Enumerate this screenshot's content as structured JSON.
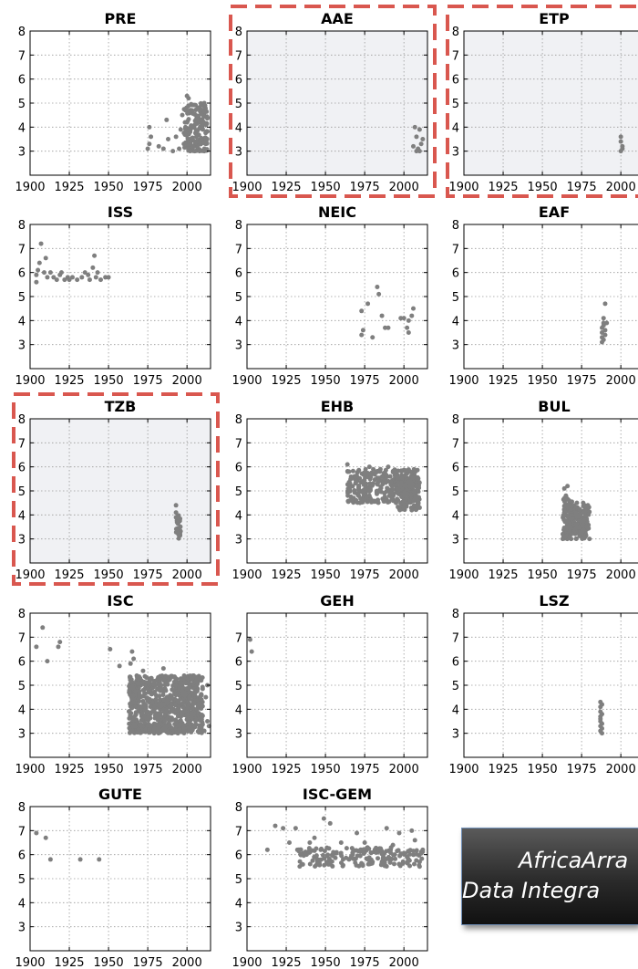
{
  "figure": {
    "point_color": "#7f7f7f",
    "highlight_color": "#d9574f",
    "highlight_fill": "#f0f1f4"
  },
  "banner": {
    "line1": "AfricaArra",
    "line2": "Data Integra"
  },
  "chart_data": [
    {
      "type": "scatter",
      "title": "PRE",
      "highlighted": false,
      "xlim": [
        1900,
        2015
      ],
      "ylim": [
        2,
        8
      ],
      "xticks": [
        "1900",
        "1925",
        "1950",
        "1975",
        "2000"
      ],
      "yticks": [
        "3",
        "4",
        "5",
        "6",
        "7",
        "8"
      ],
      "grid": true,
      "points": [
        [
          1975,
          3.1
        ],
        [
          1976,
          3.3
        ],
        [
          1976,
          4.0
        ],
        [
          1977,
          3.6
        ],
        [
          1982,
          3.2
        ],
        [
          1985,
          3.1
        ],
        [
          1987,
          4.3
        ],
        [
          1988,
          3.5
        ],
        [
          1991,
          3.0
        ],
        [
          1993,
          3.6
        ],
        [
          1995,
          3.1
        ],
        [
          1996,
          3.9
        ],
        [
          1997,
          4.5
        ],
        [
          1998,
          3.3
        ],
        [
          1999,
          4.0
        ],
        [
          2000,
          5.3
        ],
        [
          2001,
          5.2
        ],
        [
          2000,
          4.2
        ],
        [
          2002,
          3.8
        ],
        [
          2003,
          4.7
        ],
        [
          2004,
          3.2
        ],
        [
          2005,
          4.1
        ],
        [
          2006,
          3.6
        ],
        [
          2007,
          4.8
        ],
        [
          2008,
          3.4
        ],
        [
          2009,
          4.2
        ],
        [
          2010,
          3.9
        ],
        [
          2011,
          5.0
        ],
        [
          2012,
          3.5
        ],
        [
          2013,
          4.4
        ],
        [
          2002,
          3.0
        ],
        [
          2005,
          3.0
        ],
        [
          2008,
          3.0
        ],
        [
          2011,
          3.0
        ],
        [
          2012,
          4.1
        ]
      ],
      "clusters": [
        {
          "x": [
            1998,
            2013
          ],
          "y": [
            3.0,
            5.0
          ],
          "n": 150
        }
      ]
    },
    {
      "type": "scatter",
      "title": "AAE",
      "highlighted": true,
      "xlim": [
        1900,
        2015
      ],
      "ylim": [
        2,
        8
      ],
      "xticks": [
        "1900",
        "1925",
        "1950",
        "1975",
        "2000"
      ],
      "yticks": [
        "3",
        "4",
        "5",
        "6",
        "7",
        "8"
      ],
      "grid": true,
      "points": [
        [
          2006,
          3.2
        ],
        [
          2007,
          4.0
        ],
        [
          2008,
          3.6
        ],
        [
          2009,
          3.1
        ],
        [
          2010,
          3.9
        ],
        [
          2011,
          3.3
        ],
        [
          2012,
          3.5
        ],
        [
          2008,
          3.0
        ],
        [
          2010,
          3.0
        ]
      ]
    },
    {
      "type": "scatter",
      "title": "ETP",
      "highlighted": true,
      "xlim": [
        1900,
        2015
      ],
      "ylim": [
        2,
        8
      ],
      "xticks": [
        "1900",
        "1925",
        "1950",
        "1975",
        "2000"
      ],
      "yticks": [
        "3",
        "4",
        "5",
        "6",
        "7",
        "8"
      ],
      "grid": true,
      "points": [
        [
          2000,
          3.6
        ],
        [
          2000,
          3.4
        ],
        [
          2001,
          3.2
        ],
        [
          2000,
          3.0
        ],
        [
          2001,
          3.1
        ]
      ]
    },
    {
      "type": "scatter",
      "title": "ISS",
      "highlighted": false,
      "xlim": [
        1900,
        2015
      ],
      "ylim": [
        2,
        8
      ],
      "xticks": [
        "1900",
        "1925",
        "1950",
        "1975",
        "2000"
      ],
      "yticks": [
        "3",
        "4",
        "5",
        "6",
        "7",
        "8"
      ],
      "grid": true,
      "points": [
        [
          1904,
          5.6
        ],
        [
          1904,
          5.9
        ],
        [
          1905,
          6.1
        ],
        [
          1906,
          6.4
        ],
        [
          1907,
          7.2
        ],
        [
          1909,
          6.0
        ],
        [
          1910,
          6.6
        ],
        [
          1911,
          5.8
        ],
        [
          1913,
          6.0
        ],
        [
          1915,
          5.8
        ],
        [
          1917,
          5.7
        ],
        [
          1919,
          5.9
        ],
        [
          1920,
          6.0
        ],
        [
          1922,
          5.7
        ],
        [
          1924,
          5.8
        ],
        [
          1925,
          5.7
        ],
        [
          1927,
          5.8
        ],
        [
          1930,
          5.7
        ],
        [
          1933,
          5.8
        ],
        [
          1935,
          6.0
        ],
        [
          1938,
          5.7
        ],
        [
          1940,
          6.2
        ],
        [
          1941,
          6.7
        ],
        [
          1942,
          5.8
        ],
        [
          1943,
          6.0
        ],
        [
          1945,
          5.7
        ],
        [
          1948,
          5.8
        ],
        [
          1950,
          5.8
        ],
        [
          1937,
          5.9
        ]
      ]
    },
    {
      "type": "scatter",
      "title": "NEIC",
      "highlighted": false,
      "xlim": [
        1900,
        2015
      ],
      "ylim": [
        2,
        8
      ],
      "xticks": [
        "1900",
        "1925",
        "1950",
        "1975",
        "2000"
      ],
      "yticks": [
        "3",
        "4",
        "5",
        "6",
        "7",
        "8"
      ],
      "grid": true,
      "points": [
        [
          1973,
          4.4
        ],
        [
          1973,
          3.4
        ],
        [
          1974,
          3.6
        ],
        [
          1977,
          4.7
        ],
        [
          1980,
          3.3
        ],
        [
          1983,
          5.4
        ],
        [
          1984,
          5.1
        ],
        [
          1986,
          4.2
        ],
        [
          1988,
          3.7
        ],
        [
          1990,
          3.7
        ],
        [
          1998,
          4.1
        ],
        [
          2000,
          4.1
        ],
        [
          2002,
          3.7
        ],
        [
          2003,
          3.5
        ],
        [
          2005,
          4.2
        ],
        [
          2006,
          4.5
        ],
        [
          2003,
          4.0
        ]
      ]
    },
    {
      "type": "scatter",
      "title": "EAF",
      "highlighted": false,
      "xlim": [
        1900,
        2015
      ],
      "ylim": [
        2,
        8
      ],
      "xticks": [
        "1900",
        "1925",
        "1950",
        "1975",
        "2000"
      ],
      "yticks": [
        "3",
        "4",
        "5",
        "6",
        "7",
        "8"
      ],
      "grid": true,
      "points": [
        [
          1988,
          3.1
        ],
        [
          1988,
          3.3
        ],
        [
          1988,
          3.5
        ],
        [
          1988,
          3.7
        ],
        [
          1989,
          3.8
        ],
        [
          1989,
          4.1
        ],
        [
          1990,
          4.7
        ],
        [
          1990,
          3.6
        ],
        [
          1990,
          3.4
        ],
        [
          1989,
          3.2
        ],
        [
          1991,
          3.9
        ],
        [
          1989,
          3.9
        ]
      ]
    },
    {
      "type": "scatter",
      "title": "TZB",
      "highlighted": true,
      "xlim": [
        1900,
        2015
      ],
      "ylim": [
        2,
        8
      ],
      "xticks": [
        "1900",
        "1925",
        "1950",
        "1975",
        "2000"
      ],
      "yticks": [
        "3",
        "4",
        "5",
        "6",
        "7",
        "8"
      ],
      "grid": true,
      "points": [
        [
          1993,
          4.4
        ],
        [
          1993,
          4.1
        ],
        [
          1993,
          3.9
        ]
      ],
      "clusters": [
        {
          "x": [
            1993,
            1996
          ],
          "y": [
            3.0,
            4.0
          ],
          "n": 25
        }
      ]
    },
    {
      "type": "scatter",
      "title": "EHB",
      "highlighted": false,
      "xlim": [
        1900,
        2015
      ],
      "ylim": [
        2,
        8
      ],
      "xticks": [
        "1900",
        "1925",
        "1950",
        "1975",
        "2000"
      ],
      "yticks": [
        "3",
        "4",
        "5",
        "6",
        "7",
        "8"
      ],
      "grid": true,
      "points": [
        [
          1964,
          6.1
        ],
        [
          1965,
          5.8
        ],
        [
          1968,
          4.7
        ],
        [
          1972,
          4.5
        ],
        [
          1978,
          6.0
        ],
        [
          1985,
          5.9
        ],
        [
          1990,
          6.0
        ],
        [
          1995,
          4.5
        ],
        [
          2000,
          4.3
        ],
        [
          2005,
          4.2
        ],
        [
          2010,
          4.3
        ]
      ],
      "clusters": [
        {
          "x": [
            1964,
            2010
          ],
          "y": [
            4.5,
            5.9
          ],
          "n": 320
        },
        {
          "x": [
            1996,
            2010
          ],
          "y": [
            4.2,
            5.6
          ],
          "n": 120
        }
      ]
    },
    {
      "type": "scatter",
      "title": "BUL",
      "highlighted": false,
      "xlim": [
        1900,
        2015
      ],
      "ylim": [
        2,
        8
      ],
      "xticks": [
        "1900",
        "1925",
        "1950",
        "1975",
        "2000"
      ],
      "yticks": [
        "3",
        "4",
        "5",
        "6",
        "7",
        "8"
      ],
      "grid": true,
      "points": [
        [
          1964,
          5.1
        ],
        [
          1966,
          5.2
        ],
        [
          1965,
          4.8
        ],
        [
          1967,
          4.6
        ],
        [
          1972,
          4.5
        ],
        [
          1976,
          4.5
        ],
        [
          1979,
          4.4
        ],
        [
          1963,
          3.0
        ],
        [
          1980,
          3.0
        ]
      ],
      "clusters": [
        {
          "x": [
            1963,
            1980
          ],
          "y": [
            3.0,
            4.4
          ],
          "n": 200
        },
        {
          "x": [
            1963,
            1969
          ],
          "y": [
            3.0,
            4.8
          ],
          "n": 40
        }
      ]
    },
    {
      "type": "scatter",
      "title": "ISC",
      "highlighted": false,
      "xlim": [
        1900,
        2015
      ],
      "ylim": [
        2,
        8
      ],
      "xticks": [
        "1900",
        "1925",
        "1950",
        "1975",
        "2000"
      ],
      "yticks": [
        "3",
        "4",
        "5",
        "6",
        "7",
        "8"
      ],
      "grid": true,
      "points": [
        [
          1904,
          6.6
        ],
        [
          1908,
          7.4
        ],
        [
          1911,
          6.0
        ],
        [
          1918,
          6.6
        ],
        [
          1919,
          6.8
        ],
        [
          1951,
          6.5
        ],
        [
          1957,
          5.8
        ],
        [
          1964,
          5.9
        ],
        [
          1965,
          6.4
        ],
        [
          1966,
          6.1
        ],
        [
          1968,
          5.4
        ],
        [
          1972,
          5.6
        ],
        [
          1985,
          5.7
        ],
        [
          2008,
          5.3
        ],
        [
          2013,
          5.0
        ],
        [
          2012,
          4.5
        ],
        [
          2013,
          3.5
        ],
        [
          2011,
          3.1
        ],
        [
          2014,
          3.3
        ]
      ],
      "clusters": [
        {
          "x": [
            1963,
            2010
          ],
          "y": [
            3.0,
            5.4
          ],
          "n": 700
        },
        {
          "x": [
            1963,
            2005
          ],
          "y": [
            3.0,
            3.4
          ],
          "n": 150
        }
      ]
    },
    {
      "type": "scatter",
      "title": "GEH",
      "highlighted": false,
      "xlim": [
        1900,
        2015
      ],
      "ylim": [
        2,
        8
      ],
      "xticks": [
        "1900",
        "1925",
        "1950",
        "1975",
        "2000"
      ],
      "yticks": [
        "3",
        "4",
        "5",
        "6",
        "7"
      ],
      "grid": true,
      "points": [
        [
          1902,
          6.9
        ],
        [
          1903,
          6.4
        ]
      ]
    },
    {
      "type": "scatter",
      "title": "LSZ",
      "highlighted": false,
      "xlim": [
        1900,
        2015
      ],
      "ylim": [
        2,
        8
      ],
      "xticks": [
        "1900",
        "1925",
        "1950",
        "1975",
        "2000"
      ],
      "yticks": [
        "3",
        "4",
        "5",
        "6",
        "7",
        "8"
      ],
      "grid": true,
      "points": [
        [
          1987,
          4.3
        ],
        [
          1987,
          4.1
        ],
        [
          1987,
          3.9
        ],
        [
          1987,
          3.7
        ],
        [
          1987,
          3.5
        ],
        [
          1988,
          3.4
        ],
        [
          1987,
          3.3
        ],
        [
          1988,
          3.2
        ],
        [
          1987,
          3.1
        ],
        [
          1988,
          3.0
        ],
        [
          1988,
          3.8
        ],
        [
          1987,
          3.6
        ],
        [
          1988,
          4.2
        ]
      ]
    },
    {
      "type": "scatter",
      "title": "GUTE",
      "highlighted": false,
      "xlim": [
        1900,
        2015
      ],
      "ylim": [
        2,
        8
      ],
      "xticks": [
        "1900",
        "1925",
        "1950",
        "1975",
        "2000"
      ],
      "yticks": [
        "3",
        "4",
        "5",
        "6",
        "7",
        "8"
      ],
      "grid": true,
      "points": [
        [
          1904,
          6.9
        ],
        [
          1910,
          6.7
        ],
        [
          1913,
          5.8
        ],
        [
          1932,
          5.8
        ],
        [
          1944,
          5.8
        ]
      ]
    },
    {
      "type": "scatter",
      "title": "ISC-GEM",
      "highlighted": false,
      "xlim": [
        1900,
        2015
      ],
      "ylim": [
        2,
        8
      ],
      "xticks": [
        "1900",
        "1925",
        "1950",
        "1975",
        "2000"
      ],
      "yticks": [
        "3",
        "4",
        "5",
        "6",
        "7",
        "8"
      ],
      "grid": true,
      "points": [
        [
          1913,
          6.2
        ],
        [
          1918,
          7.2
        ],
        [
          1923,
          7.1
        ],
        [
          1927,
          6.5
        ],
        [
          1931,
          7.1
        ],
        [
          1935,
          5.6
        ],
        [
          1938,
          6.0
        ],
        [
          1940,
          6.5
        ],
        [
          1943,
          6.7
        ],
        [
          1947,
          6.2
        ],
        [
          1949,
          7.5
        ],
        [
          1953,
          7.3
        ],
        [
          1955,
          6.1
        ],
        [
          1960,
          6.5
        ],
        [
          1965,
          5.8
        ],
        [
          1970,
          6.9
        ],
        [
          1975,
          6.5
        ],
        [
          1980,
          5.7
        ],
        [
          1984,
          6.2
        ],
        [
          1989,
          7.1
        ],
        [
          1993,
          6.4
        ],
        [
          1997,
          6.9
        ],
        [
          2002,
          5.9
        ],
        [
          2005,
          7.0
        ],
        [
          2007,
          6.6
        ],
        [
          2010,
          5.7
        ],
        [
          2012,
          6.2
        ]
      ],
      "clusters": [
        {
          "x": [
            1932,
            2012
          ],
          "y": [
            5.5,
            6.3
          ],
          "n": 180
        }
      ]
    }
  ]
}
